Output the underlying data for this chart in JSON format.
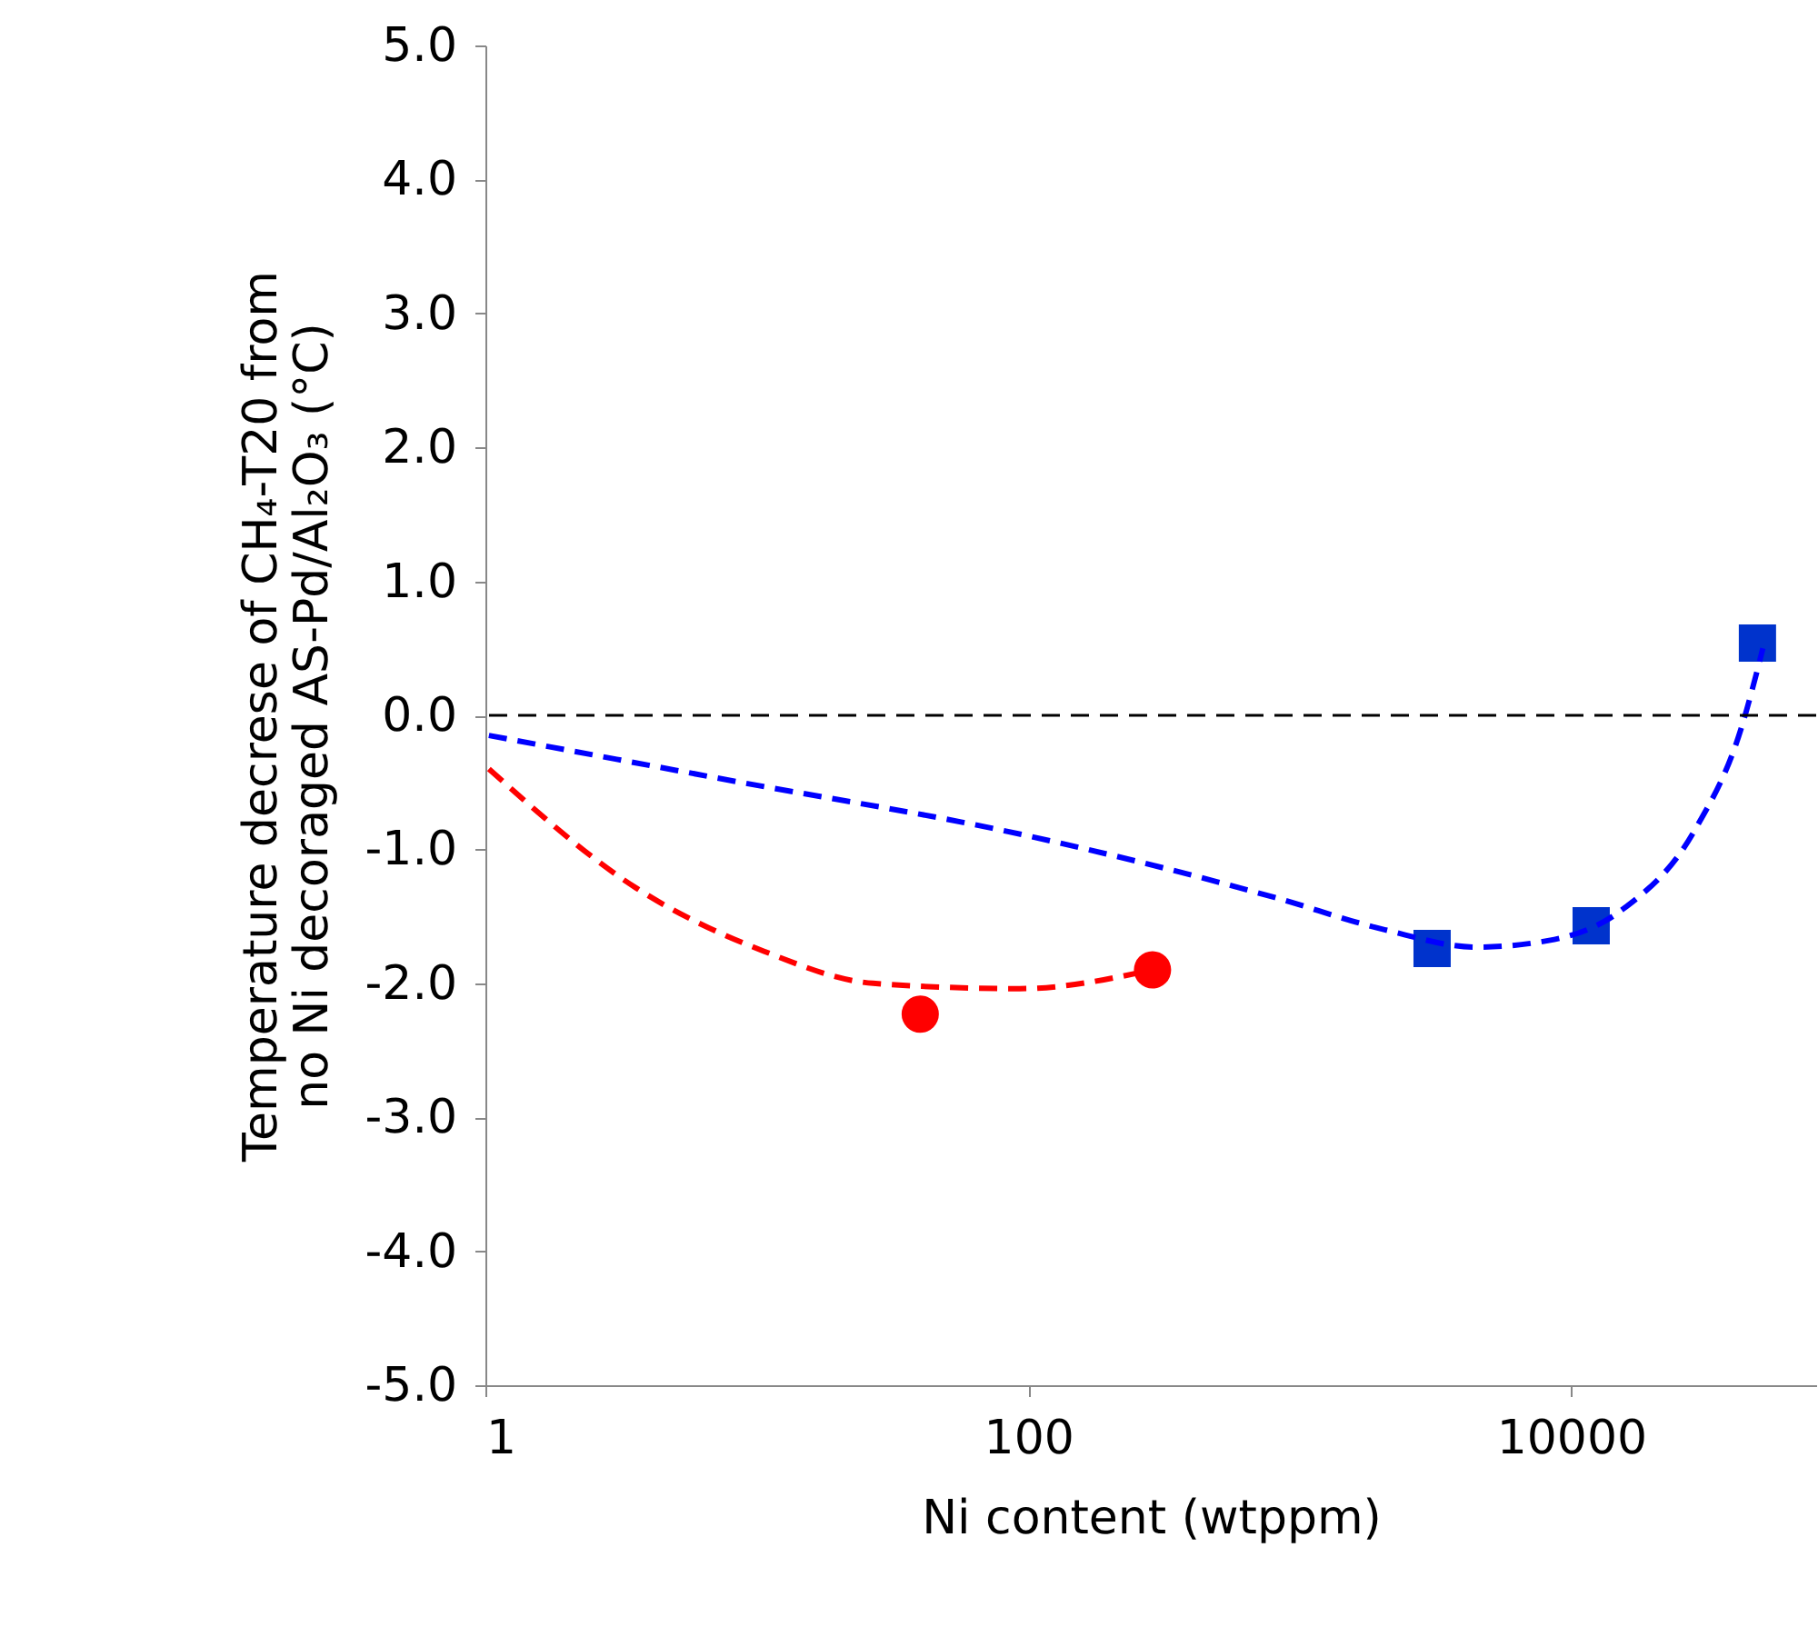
{
  "chart_data": {
    "type": "scatter",
    "xlabel": "Ni content (wtppm)",
    "ylabel": [
      "Temperature decrese of CH₄-T20 from",
      "no Ni decoraged AS-Pd/Al₂O₃ (°C)"
    ],
    "log": "x",
    "xlim": [
      1,
      80000
    ],
    "xticks": [
      1,
      100,
      10000
    ],
    "ylim": [
      -5,
      5
    ],
    "yticks": [
      {
        "value": -5,
        "label": "-5.0"
      },
      {
        "value": -4,
        "label": "-4.0"
      },
      {
        "value": -3,
        "label": "-3.0"
      },
      {
        "value": -2,
        "label": "-2.0"
      },
      {
        "value": -1,
        "label": "-1.0"
      },
      {
        "value": 0,
        "label": "0.0"
      },
      {
        "value": 1,
        "label": "1.0"
      },
      {
        "value": 2,
        "label": "2.0"
      },
      {
        "value": 3,
        "label": "3.0"
      },
      {
        "value": 4,
        "label": "4.0"
      },
      {
        "value": 5,
        "label": "5.0"
      }
    ],
    "grid": false,
    "ref_lines": [
      {
        "axis": "y",
        "value": 0,
        "color": "#000000",
        "line_style": "dashed"
      }
    ],
    "series": [
      {
        "type": "line",
        "color": "#ff0000",
        "line_style": "dashed",
        "marker": "none",
        "x": [
          1.03,
          3.6,
          10.6,
          26.8,
          93,
          287
        ],
        "values": [
          -0.4,
          -1.29,
          -1.76,
          -2.0,
          -2.04,
          -1.9
        ]
      },
      {
        "type": "line",
        "color": "#0000ff",
        "line_style": "dashed",
        "marker": "none",
        "x": [
          1.03,
          7.7,
          100,
          811,
          2056,
          4467,
          8300,
          15450,
          28700,
          42300,
          50900
        ],
        "values": [
          -0.15,
          -0.48,
          -0.9,
          -1.36,
          -1.6,
          -1.73,
          -1.68,
          -1.45,
          -0.85,
          -0.1,
          0.5
        ]
      },
      {
        "color": "#ff0000",
        "marker": "circle",
        "x": [
          40,
          287
        ],
        "values": [
          -2.23,
          -1.9
        ]
      },
      {
        "color": "#0033cc",
        "marker": "square",
        "x": [
          3076,
          11860,
          48600
        ],
        "values": [
          -1.74,
          -1.57,
          0.54
        ]
      }
    ]
  }
}
